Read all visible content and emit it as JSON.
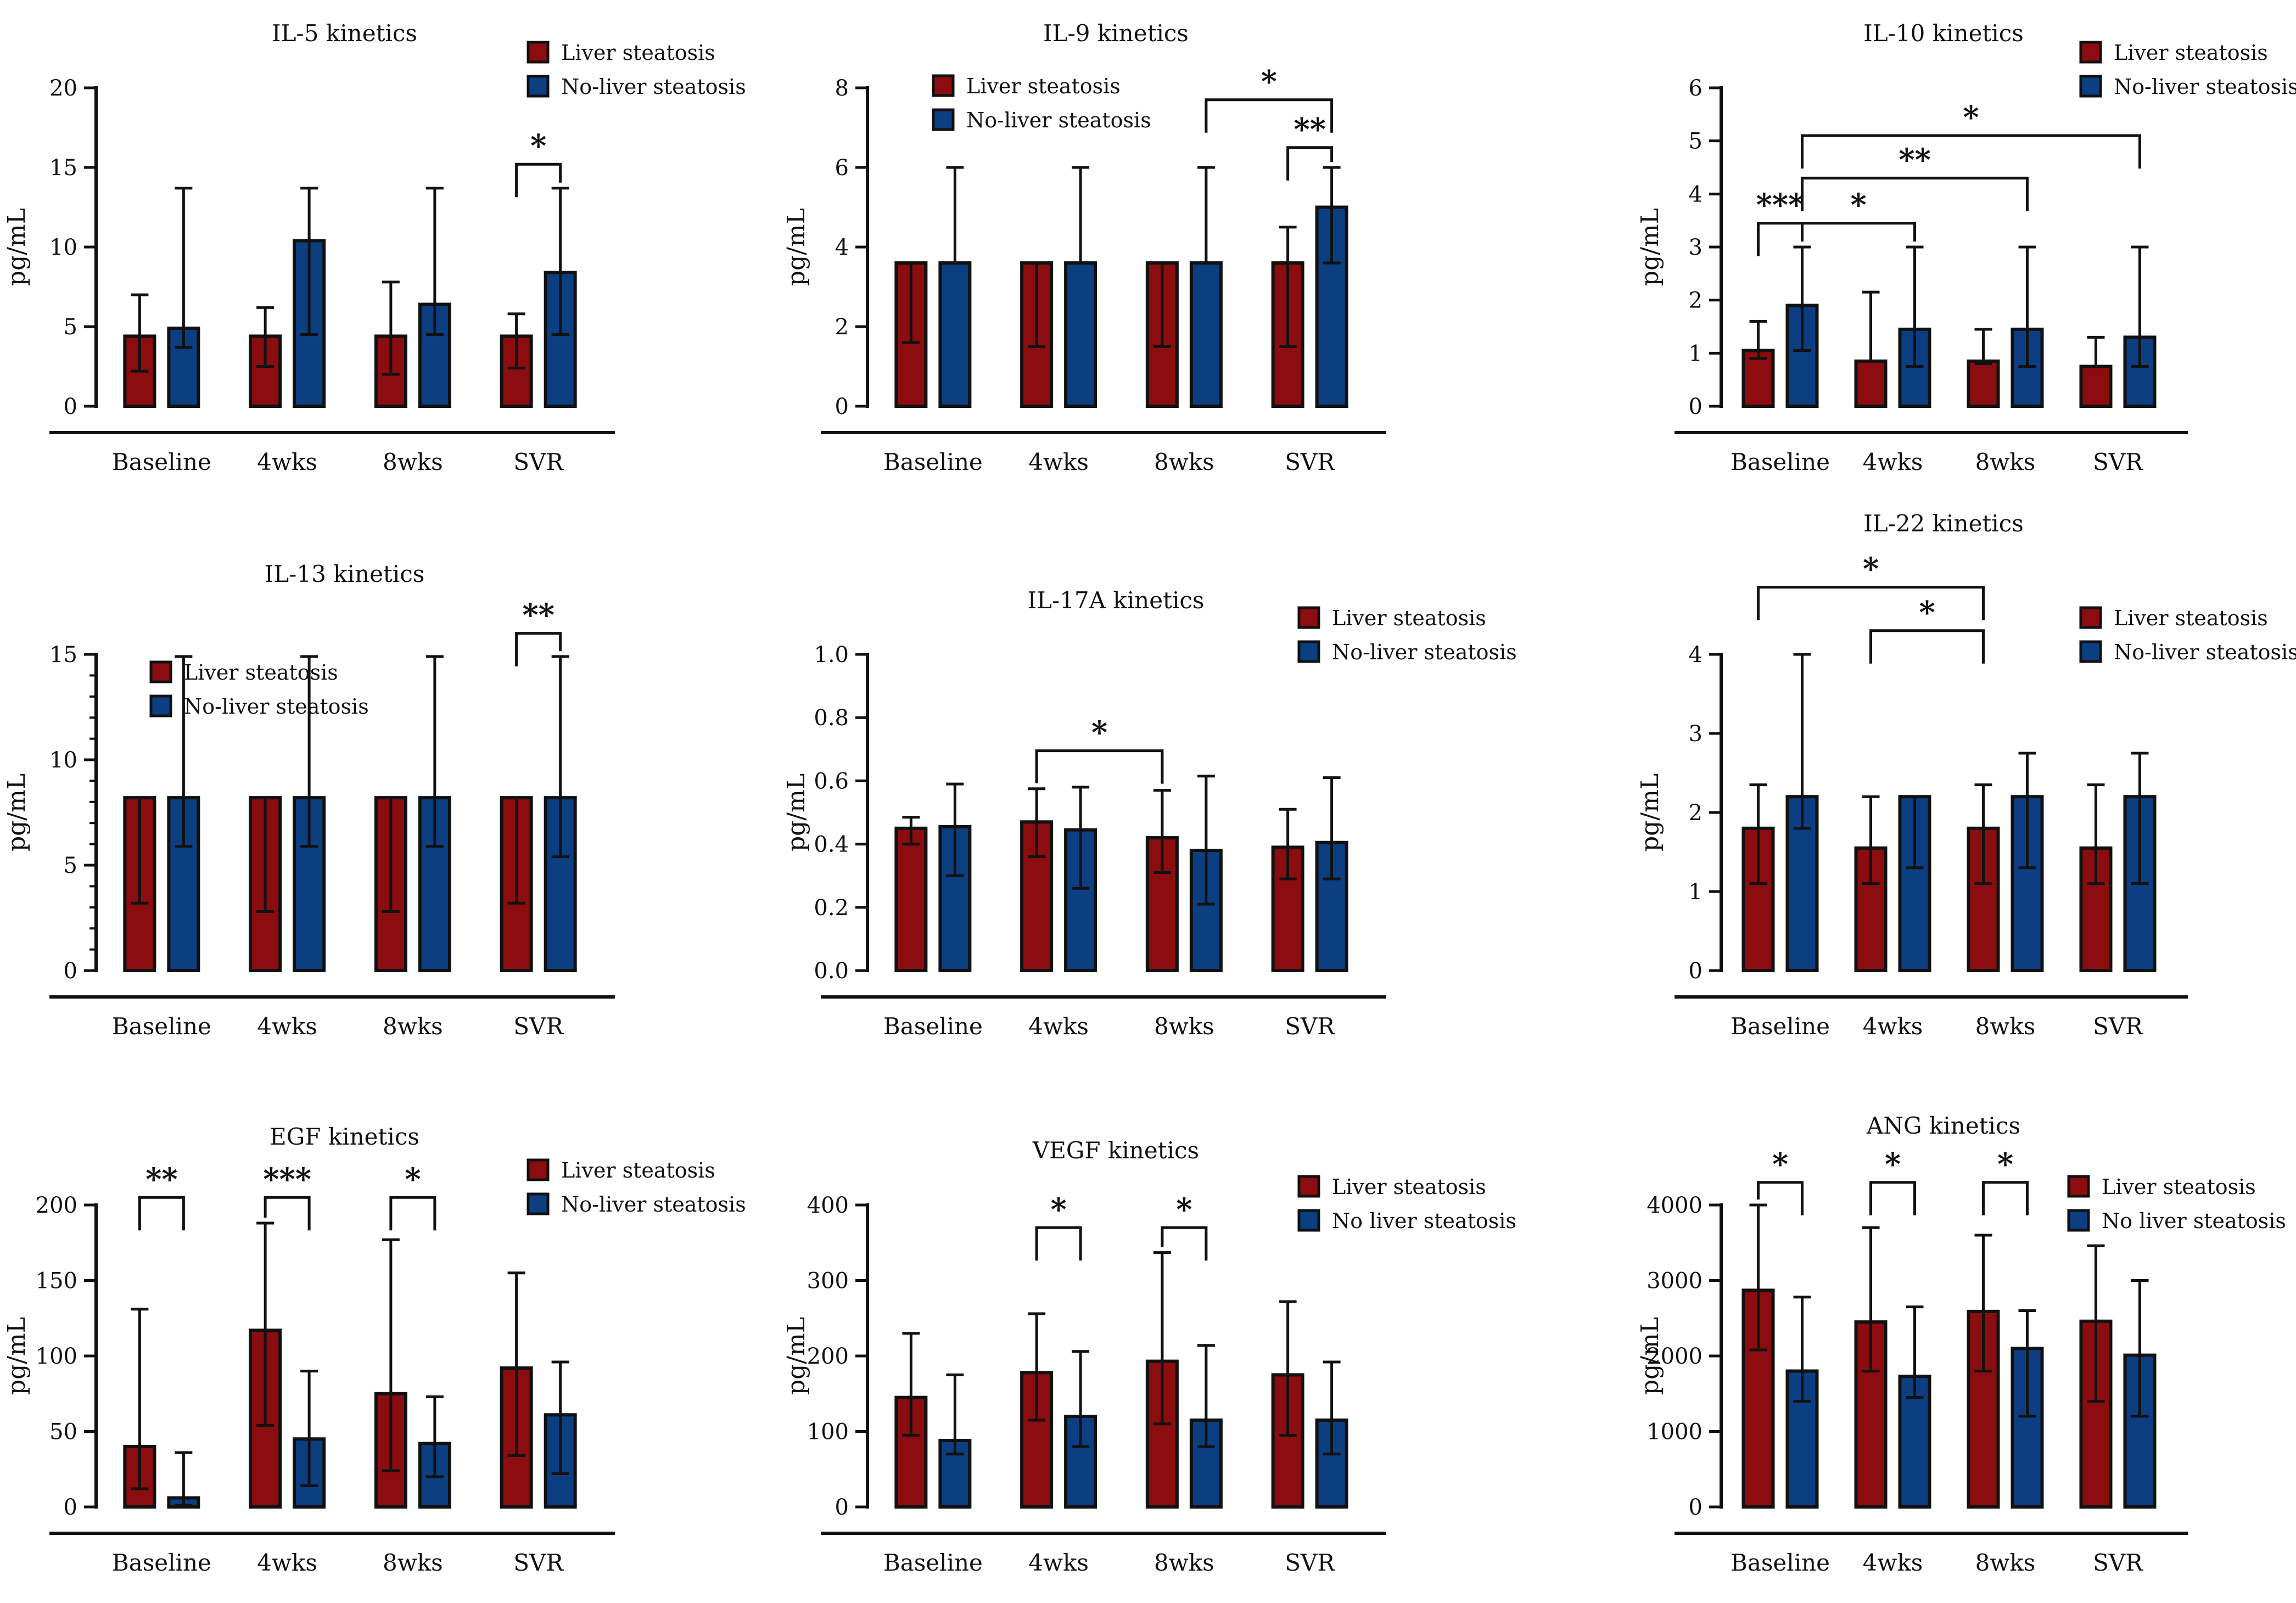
{
  "colors": {
    "liver": "#8b0d0f",
    "noliver": "#0c3f82"
  },
  "chart_data": [
    {
      "type": "bar",
      "title": "IL-5 kinetics",
      "ylabel": "pg/mL",
      "categories": [
        "Baseline",
        "4wks",
        "8wks",
        "SVR"
      ],
      "ylim": [
        0,
        20
      ],
      "yticks": [
        0,
        5,
        10,
        15,
        20
      ],
      "ytick_labels": [
        "0",
        "5",
        "10",
        "15",
        "20"
      ],
      "minor_ticks": false,
      "legend": {
        "position": "top-right",
        "labels": [
          "Liver steatosis",
          "No-liver steatosis"
        ]
      },
      "series": [
        {
          "name": "Liver steatosis",
          "values": [
            4.4,
            4.4,
            4.4,
            4.4
          ],
          "err_low": [
            2.2,
            2.5,
            2.0,
            2.4
          ],
          "err_high": [
            7.0,
            6.2,
            7.8,
            5.8
          ]
        },
        {
          "name": "No-liver steatosis",
          "values": [
            4.9,
            10.4,
            6.4,
            8.4
          ],
          "err_low": [
            3.7,
            4.5,
            4.5,
            4.5
          ],
          "err_high": [
            13.7,
            13.7,
            13.7,
            13.7
          ]
        }
      ],
      "significance": [
        {
          "from": [
            3,
            0
          ],
          "to": [
            3,
            1
          ],
          "y": 15.2,
          "label": "*"
        }
      ]
    },
    {
      "type": "bar",
      "title": "IL-9 kinetics",
      "ylabel": "pg/mL",
      "categories": [
        "Baseline",
        "4wks",
        "8wks",
        "SVR"
      ],
      "ylim": [
        0,
        8
      ],
      "yticks": [
        0,
        2,
        4,
        6,
        8
      ],
      "ytick_labels": [
        "0",
        "2",
        "4",
        "6",
        "8"
      ],
      "minor_ticks": false,
      "legend": {
        "position": "top-left",
        "labels": [
          "Liver steatosis",
          "No-liver steatosis"
        ]
      },
      "series": [
        {
          "name": "Liver steatosis",
          "values": [
            3.6,
            3.6,
            3.6,
            3.6
          ],
          "err_low": [
            1.6,
            1.5,
            1.5,
            1.5
          ],
          "err_high": [
            3.6,
            3.6,
            3.6,
            4.5
          ]
        },
        {
          "name": "No-liver steatosis",
          "values": [
            3.6,
            3.6,
            3.6,
            5.0
          ],
          "err_low": [
            3.6,
            3.6,
            3.6,
            3.6
          ],
          "err_high": [
            6.0,
            6.0,
            6.0,
            6.0
          ]
        }
      ],
      "significance": [
        {
          "from": [
            2,
            1
          ],
          "to": [
            3,
            1
          ],
          "y": 7.7,
          "label": "*"
        },
        {
          "from": [
            3,
            0
          ],
          "to": [
            3,
            1
          ],
          "y": 6.5,
          "label": "**"
        }
      ]
    },
    {
      "type": "bar",
      "title": "IL-10 kinetics",
      "ylabel": "pg/mL",
      "categories": [
        "Baseline",
        "4wks",
        "8wks",
        "SVR"
      ],
      "ylim": [
        0,
        6
      ],
      "yticks": [
        0,
        1,
        2,
        3,
        4,
        5,
        6
      ],
      "ytick_labels": [
        "0",
        "1",
        "2",
        "3",
        "4",
        "5",
        "6"
      ],
      "minor_ticks": false,
      "legend": {
        "position": "top-right",
        "labels": [
          "Liver steatosis",
          "No-liver steatosis"
        ]
      },
      "series": [
        {
          "name": "Liver steatosis",
          "values": [
            1.05,
            0.85,
            0.85,
            0.75
          ],
          "err_low": [
            0.9,
            0.85,
            0.8,
            0.75
          ],
          "err_high": [
            1.6,
            2.15,
            1.45,
            1.3
          ]
        },
        {
          "name": "No-liver steatosis",
          "values": [
            1.9,
            1.45,
            1.45,
            1.3
          ],
          "err_low": [
            1.05,
            0.75,
            0.75,
            0.75
          ],
          "err_high": [
            3.0,
            3.0,
            3.0,
            3.0
          ]
        }
      ],
      "significance": [
        {
          "from": [
            0,
            1
          ],
          "to": [
            3,
            1
          ],
          "y": 5.1,
          "label": "*"
        },
        {
          "from": [
            0,
            1
          ],
          "to": [
            2,
            1
          ],
          "y": 4.3,
          "label": "**"
        },
        {
          "from": [
            0,
            1
          ],
          "to": [
            1,
            1
          ],
          "y": 3.45,
          "label": "*"
        },
        {
          "from": [
            0,
            0
          ],
          "to": [
            0,
            1
          ],
          "y": 3.45,
          "label": "***"
        }
      ]
    },
    {
      "type": "bar",
      "title": "IL-13 kinetics",
      "ylabel": "pg/mL",
      "categories": [
        "Baseline",
        "4wks",
        "8wks",
        "SVR"
      ],
      "ylim": [
        0,
        15
      ],
      "yticks": [
        0,
        5,
        10,
        15
      ],
      "ytick_labels": [
        "0",
        "5",
        "10",
        "15"
      ],
      "minor_ticks": true,
      "legend": {
        "position": "top-left",
        "labels": [
          "Liver steatosis",
          "No-liver steatosis"
        ]
      },
      "series": [
        {
          "name": "Liver steatosis",
          "values": [
            8.2,
            8.2,
            8.2,
            8.2
          ],
          "err_low": [
            3.2,
            2.8,
            2.8,
            3.2
          ],
          "err_high": [
            8.2,
            8.2,
            8.2,
            8.2
          ]
        },
        {
          "name": "No-liver steatosis",
          "values": [
            8.2,
            8.2,
            8.2,
            8.2
          ],
          "err_low": [
            5.9,
            5.9,
            5.9,
            5.4
          ],
          "err_high": [
            14.9,
            14.9,
            14.9,
            14.9
          ]
        }
      ],
      "significance": [
        {
          "from": [
            3,
            0
          ],
          "to": [
            3,
            1
          ],
          "y": 16.0,
          "label": "**"
        }
      ]
    },
    {
      "type": "bar",
      "title": "IL-17A kinetics",
      "ylabel": "pg/mL",
      "categories": [
        "Baseline",
        "4wks",
        "8wks",
        "SVR"
      ],
      "ylim": [
        0,
        1.0
      ],
      "yticks": [
        0,
        0.2,
        0.4,
        0.6,
        0.8,
        1.0
      ],
      "ytick_labels": [
        "0.0",
        "0.2",
        "0.4",
        "0.6",
        "0.8",
        "1.0"
      ],
      "minor_ticks": false,
      "legend": {
        "position": "top-right",
        "labels": [
          "Liver steatosis",
          "No-liver steatosis"
        ]
      },
      "series": [
        {
          "name": "Liver steatosis",
          "values": [
            0.45,
            0.47,
            0.42,
            0.39
          ],
          "err_low": [
            0.4,
            0.36,
            0.31,
            0.29
          ],
          "err_high": [
            0.485,
            0.575,
            0.57,
            0.51
          ]
        },
        {
          "name": "No-liver steatosis",
          "values": [
            0.455,
            0.445,
            0.38,
            0.405
          ],
          "err_low": [
            0.3,
            0.26,
            0.21,
            0.29
          ],
          "err_high": [
            0.59,
            0.58,
            0.615,
            0.61
          ]
        }
      ],
      "significance": [
        {
          "from": [
            1,
            0
          ],
          "to": [
            2,
            0
          ],
          "y": 0.695,
          "label": "*"
        }
      ]
    },
    {
      "type": "bar",
      "title": "IL-22 kinetics",
      "ylabel": "pg/mL",
      "categories": [
        "Baseline",
        "4wks",
        "8wks",
        "SVR"
      ],
      "ylim": [
        0,
        4
      ],
      "yticks": [
        0,
        1,
        2,
        3,
        4
      ],
      "ytick_labels": [
        "0",
        "1",
        "2",
        "3",
        "4"
      ],
      "minor_ticks": false,
      "legend": {
        "position": "top-right",
        "labels": [
          "Liver steatosis",
          "No-liver steatosis"
        ]
      },
      "series": [
        {
          "name": "Liver steatosis",
          "values": [
            1.8,
            1.55,
            1.8,
            1.55
          ],
          "err_low": [
            1.1,
            1.1,
            1.1,
            1.1
          ],
          "err_high": [
            2.35,
            2.2,
            2.35,
            2.35
          ]
        },
        {
          "name": "No-liver steatosis",
          "values": [
            2.2,
            2.2,
            2.2,
            2.2
          ],
          "err_low": [
            1.8,
            1.3,
            1.3,
            1.1
          ],
          "err_high": [
            4.0,
            2.2,
            2.75,
            2.75
          ]
        }
      ],
      "significance": [
        {
          "from": [
            0,
            0
          ],
          "to": [
            2,
            0
          ],
          "y": 4.85,
          "label": "*"
        },
        {
          "from": [
            1,
            0
          ],
          "to": [
            2,
            0
          ],
          "y": 4.3,
          "label": "*"
        }
      ]
    },
    {
      "type": "bar",
      "title": "EGF kinetics",
      "ylabel": "pg/mL",
      "categories": [
        "Baseline",
        "4wks",
        "8wks",
        "SVR"
      ],
      "ylim": [
        0,
        200
      ],
      "yticks": [
        0,
        50,
        100,
        150,
        200
      ],
      "ytick_labels": [
        "0",
        "50",
        "100",
        "150",
        "200"
      ],
      "minor_ticks": false,
      "legend": {
        "position": "top-right",
        "labels": [
          "Liver steatosis",
          "No-liver steatosis"
        ]
      },
      "series": [
        {
          "name": "Liver steatosis",
          "values": [
            40,
            117,
            75,
            92
          ],
          "err_low": [
            12,
            54,
            24,
            34
          ],
          "err_high": [
            131,
            188,
            177,
            155
          ]
        },
        {
          "name": "No-liver steatosis",
          "values": [
            6,
            45,
            42,
            61
          ],
          "err_low": [
            1,
            14,
            20,
            22
          ],
          "err_high": [
            36,
            90,
            73,
            96
          ]
        }
      ],
      "significance": [
        {
          "from": [
            0,
            0
          ],
          "to": [
            0,
            1
          ],
          "y": 205,
          "label": "**"
        },
        {
          "from": [
            1,
            0
          ],
          "to": [
            1,
            1
          ],
          "y": 205,
          "label": "***"
        },
        {
          "from": [
            2,
            0
          ],
          "to": [
            2,
            1
          ],
          "y": 205,
          "label": "*"
        }
      ]
    },
    {
      "type": "bar",
      "title": "VEGF kinetics",
      "ylabel": "pg/mL",
      "categories": [
        "Baseline",
        "4wks",
        "8wks",
        "SVR"
      ],
      "ylim": [
        0,
        400
      ],
      "yticks": [
        0,
        100,
        200,
        300,
        400
      ],
      "ytick_labels": [
        "0",
        "100",
        "200",
        "300",
        "400"
      ],
      "minor_ticks": false,
      "legend": {
        "position": "top-right",
        "labels": [
          "Liver steatosis",
          "No liver steatosis"
        ]
      },
      "series": [
        {
          "name": "Liver steatosis",
          "values": [
            145,
            178,
            193,
            175
          ],
          "err_low": [
            95,
            115,
            110,
            95
          ],
          "err_high": [
            230,
            256,
            337,
            272
          ]
        },
        {
          "name": "No liver steatosis",
          "values": [
            88,
            120,
            115,
            115
          ],
          "err_low": [
            70,
            80,
            80,
            70
          ],
          "err_high": [
            175,
            206,
            214,
            192
          ]
        }
      ],
      "significance": [
        {
          "from": [
            1,
            0
          ],
          "to": [
            1,
            1
          ],
          "y": 370,
          "label": "*"
        },
        {
          "from": [
            2,
            0
          ],
          "to": [
            2,
            1
          ],
          "y": 370,
          "label": "*"
        }
      ]
    },
    {
      "type": "bar",
      "title": "ANG kinetics",
      "ylabel": "pg/mL",
      "categories": [
        "Baseline",
        "4wks",
        "8wks",
        "SVR"
      ],
      "ylim": [
        0,
        4000
      ],
      "yticks": [
        0,
        1000,
        2000,
        3000,
        4000
      ],
      "ytick_labels": [
        "0",
        "1000",
        "2000",
        "3000",
        "4000"
      ],
      "minor_ticks": false,
      "legend": {
        "position": "top-right",
        "labels": [
          "Liver steatosis",
          "No liver steatosis"
        ]
      },
      "series": [
        {
          "name": "Liver steatosis",
          "values": [
            2870,
            2450,
            2590,
            2460
          ],
          "err_low": [
            2080,
            1800,
            1800,
            1400
          ],
          "err_high": [
            4000,
            3700,
            3600,
            3460
          ]
        },
        {
          "name": "No liver steatosis",
          "values": [
            1800,
            1730,
            2100,
            2010
          ],
          "err_low": [
            1400,
            1450,
            1200,
            1200
          ],
          "err_high": [
            2780,
            2650,
            2600,
            3000
          ]
        }
      ],
      "significance": [
        {
          "from": [
            0,
            0
          ],
          "to": [
            0,
            1
          ],
          "y": 4300,
          "label": "*"
        },
        {
          "from": [
            1,
            0
          ],
          "to": [
            1,
            1
          ],
          "y": 4300,
          "label": "*"
        },
        {
          "from": [
            2,
            0
          ],
          "to": [
            2,
            1
          ],
          "y": 4300,
          "label": "*"
        }
      ]
    }
  ]
}
